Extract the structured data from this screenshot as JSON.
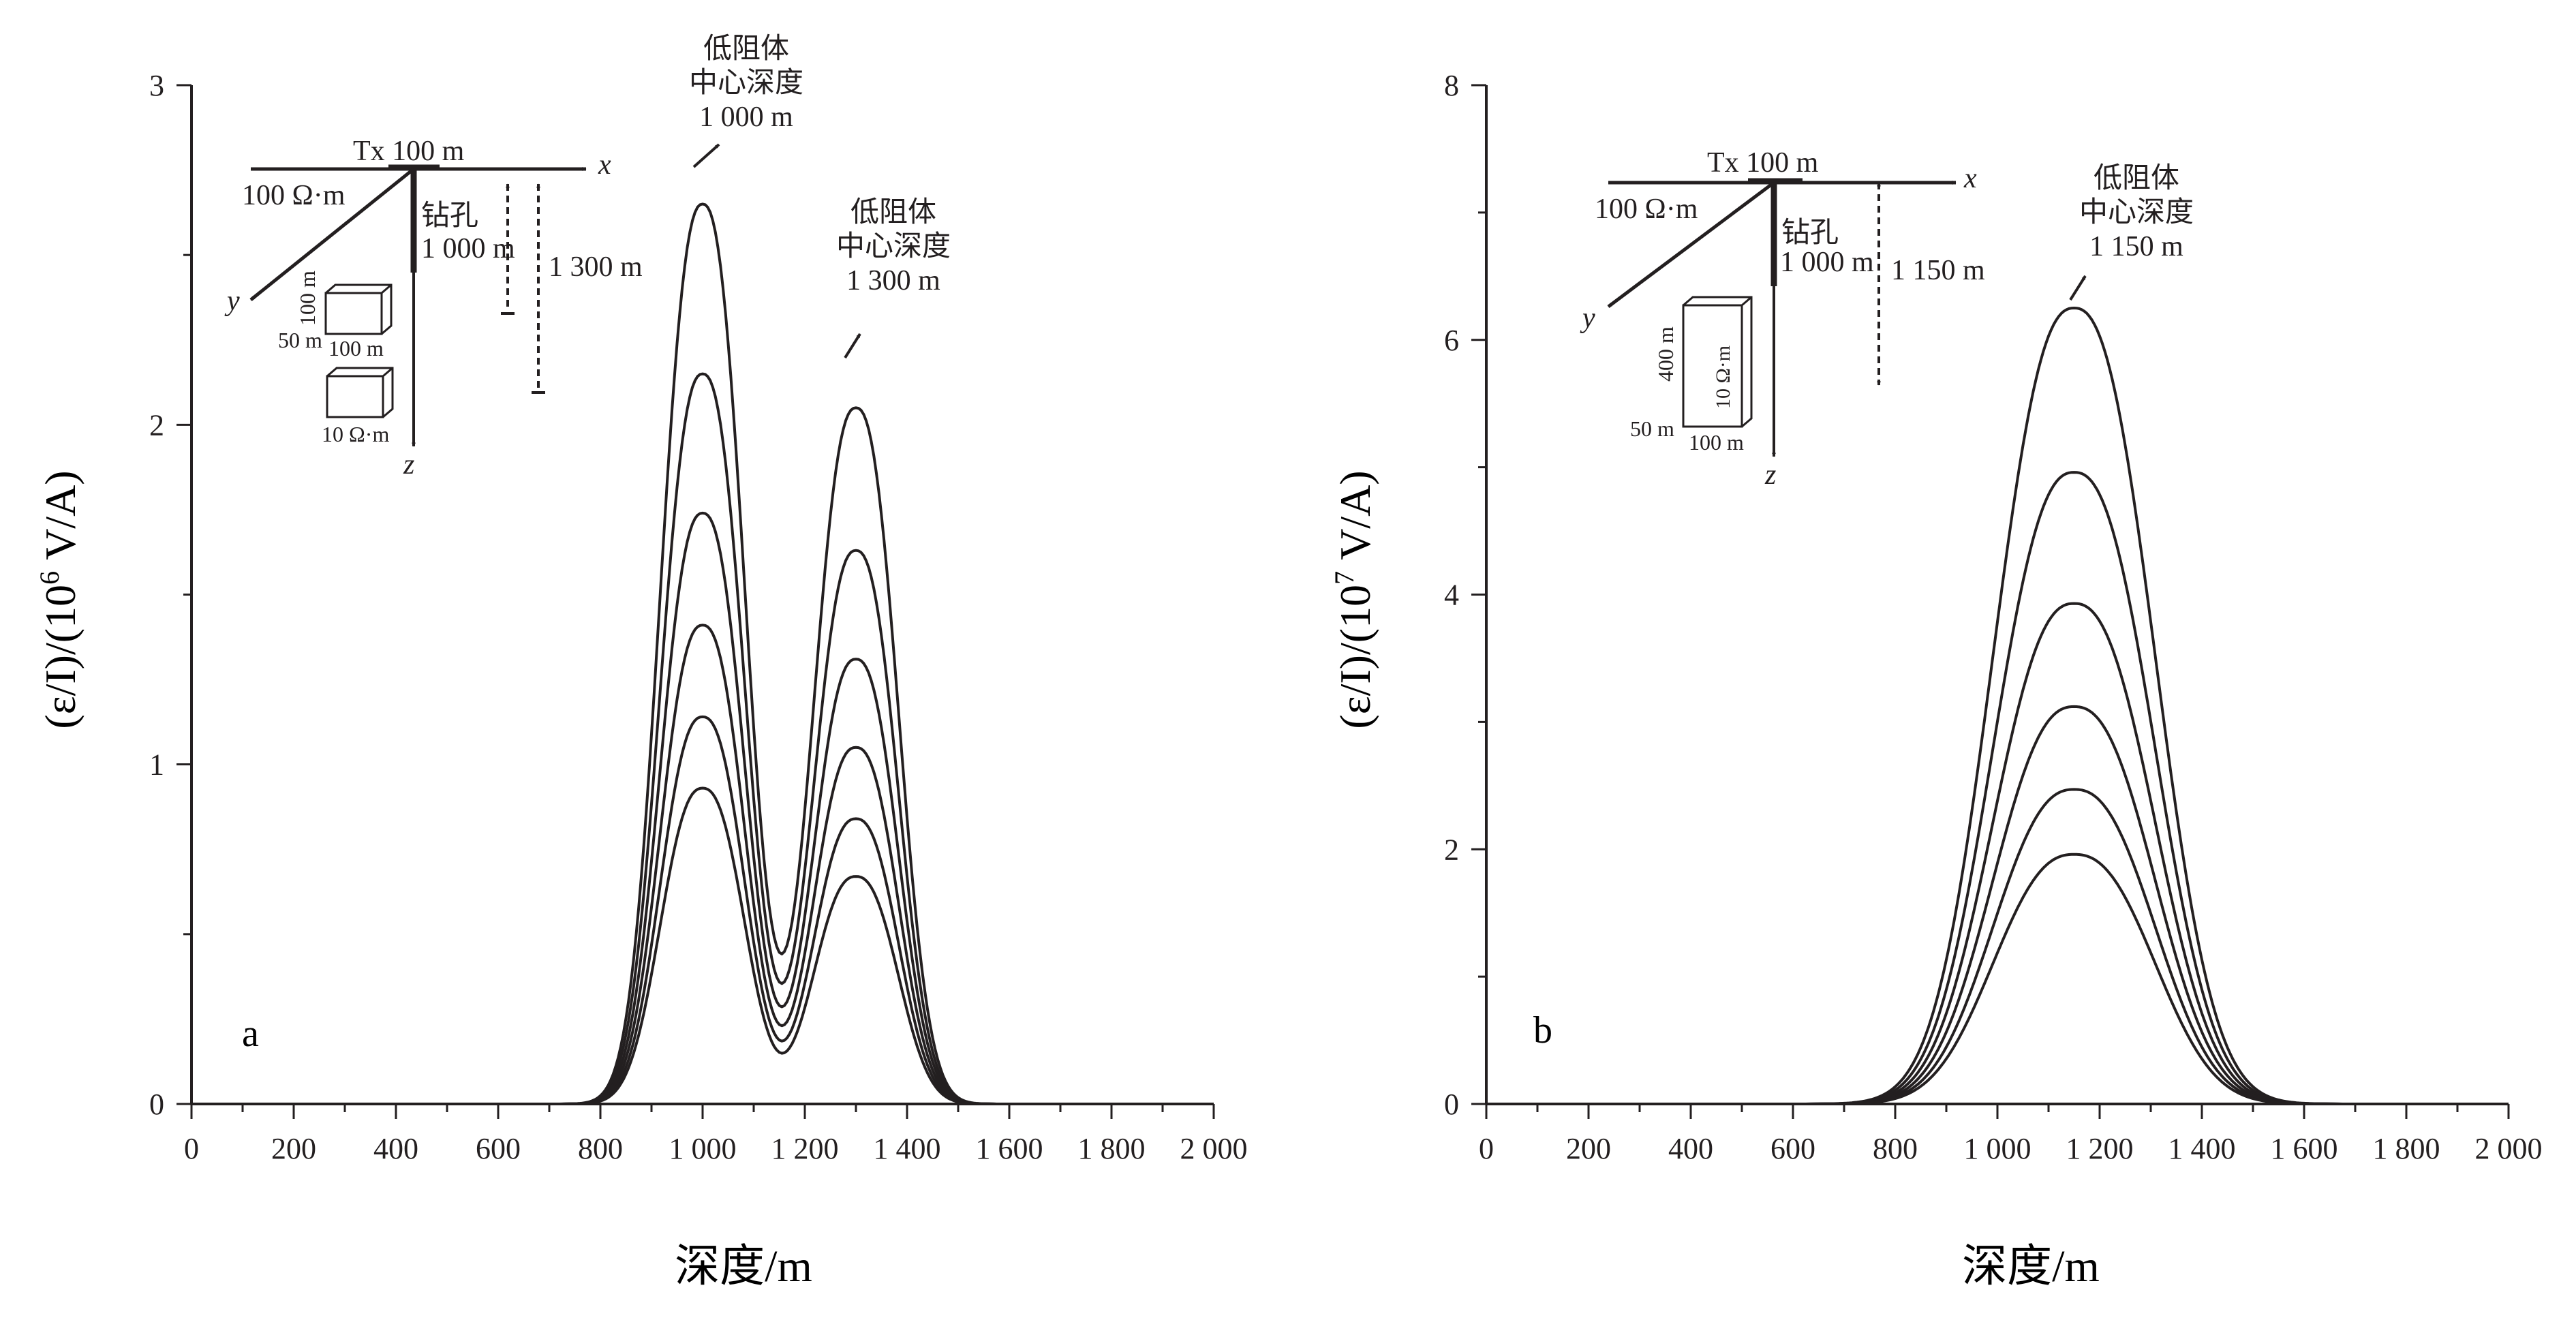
{
  "chart_data": [
    {
      "type": "line",
      "panel_label": "a",
      "xlabel": "深度/m",
      "ylabel_prefix": "(ε/I)/(10",
      "ylabel_exp": "6",
      "ylabel_suffix": " V/A)",
      "xlim": [
        0,
        2000
      ],
      "ylim": [
        0,
        3
      ],
      "xticks": [
        0,
        200,
        400,
        600,
        800,
        1000,
        1200,
        1400,
        1600,
        1800,
        2000
      ],
      "xtick_labels": [
        "0",
        "200",
        "400",
        "600",
        "800",
        "1 000",
        "1 200",
        "1 400",
        "1 600",
        "1 800",
        "2 000"
      ],
      "yticks": [
        0,
        1,
        2,
        3
      ],
      "ytick_labels": [
        "0",
        "1",
        "2",
        "3"
      ],
      "peaks": [
        1000,
        1300
      ],
      "series_amplitudes": [
        [
          2.65,
          2.05
        ],
        [
          2.15,
          1.63
        ],
        [
          1.74,
          1.31
        ],
        [
          1.41,
          1.05
        ],
        [
          1.14,
          0.84
        ],
        [
          0.93,
          0.67
        ]
      ],
      "annotations": {
        "tx": "Tx 100 m",
        "axis_x": "x",
        "axis_y": "y",
        "axis_z": "z",
        "host_res": "100 Ω·m",
        "borehole": "钻孔",
        "borehole_depth": "1 000 m",
        "depth2": "1 300 m",
        "body_height": "100 m",
        "body_width": "50 m",
        "body_length": "100 m",
        "body_res": "10 Ω·m",
        "peak1_lines": [
          "低阻体",
          "中心深度",
          "1 000 m"
        ],
        "peak2_lines": [
          "低阻体",
          "中心深度",
          "1 300 m"
        ]
      }
    },
    {
      "type": "line",
      "panel_label": "b",
      "xlabel": "深度/m",
      "ylabel_prefix": "(ε/I)/(10",
      "ylabel_exp": "7",
      "ylabel_suffix": " V/A)",
      "xlim": [
        0,
        2000
      ],
      "ylim": [
        0,
        8
      ],
      "xticks": [
        0,
        200,
        400,
        600,
        800,
        1000,
        1200,
        1400,
        1600,
        1800,
        2000
      ],
      "xtick_labels": [
        "0",
        "200",
        "400",
        "600",
        "800",
        "1 000",
        "1 200",
        "1 400",
        "1 600",
        "1 800",
        "2 000"
      ],
      "yticks": [
        0,
        2,
        4,
        6,
        8
      ],
      "ytick_labels": [
        "0",
        "2",
        "4",
        "6",
        "8"
      ],
      "peaks": [
        1150
      ],
      "series_amplitudes": [
        [
          6.25
        ],
        [
          4.96
        ],
        [
          3.93
        ],
        [
          3.12
        ],
        [
          2.47
        ],
        [
          1.96
        ]
      ],
      "annotations": {
        "tx": "Tx 100 m",
        "axis_x": "x",
        "axis_y": "y",
        "axis_z": "z",
        "host_res": "100 Ω·m",
        "borehole": "钻孔",
        "borehole_depth": "1 000 m",
        "depth2": "1 150 m",
        "body_height": "400 m",
        "body_width": "50 m",
        "body_length": "100 m",
        "body_res": "10 Ω·m",
        "peak1_lines": [
          "低阻体",
          "中心深度",
          "1 150 m"
        ]
      }
    }
  ],
  "colors": {
    "ink": "#231f20",
    "background": "#ffffff"
  }
}
